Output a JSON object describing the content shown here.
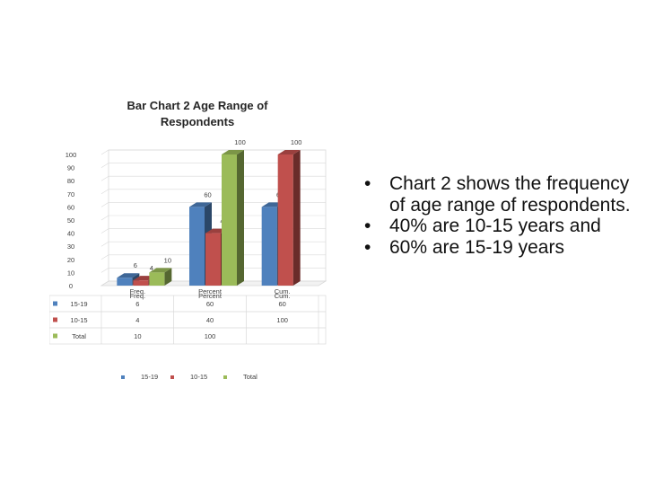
{
  "chart_data": {
    "type": "bar",
    "title": "Bar Chart 2 Age Range of Respondents",
    "categories": [
      "Freq.",
      "Percent",
      "Cum."
    ],
    "series": [
      {
        "name": "15-19",
        "values": [
          6,
          60,
          60
        ],
        "color": "#4f81bd"
      },
      {
        "name": "10-15",
        "values": [
          4,
          40,
          100
        ],
        "color": "#c0504d"
      },
      {
        "name": "Total",
        "values": [
          10,
          100,
          null
        ],
        "color": "#9bbb59"
      }
    ],
    "data_labels": {
      "15-19": [
        "6",
        "60",
        "60"
      ],
      "10-15": [
        "4",
        "40",
        "100"
      ],
      "Total": [
        "10",
        "100",
        ""
      ]
    },
    "y_ticks": [
      "0",
      "10",
      "20",
      "30",
      "40",
      "50",
      "60",
      "70",
      "80",
      "90",
      "100"
    ],
    "ylim": [
      0,
      100
    ],
    "three_d": true,
    "legend_position": "bottom",
    "data_table": {
      "headers": [
        "Freq.",
        "Percent",
        "Cum."
      ],
      "rows": [
        {
          "label": "15-19",
          "values": [
            "6",
            "60",
            "60"
          ]
        },
        {
          "label": "10-15",
          "values": [
            "4",
            "40",
            "100"
          ]
        },
        {
          "label": "Total",
          "values": [
            "10",
            "100",
            ""
          ]
        }
      ]
    }
  },
  "bullets": [
    "Chart 2 shows the frequency of age range of respondents.",
    "40%  are 10-15 years and",
    "60% are 15-19 years"
  ],
  "bullet_glyph": "•"
}
